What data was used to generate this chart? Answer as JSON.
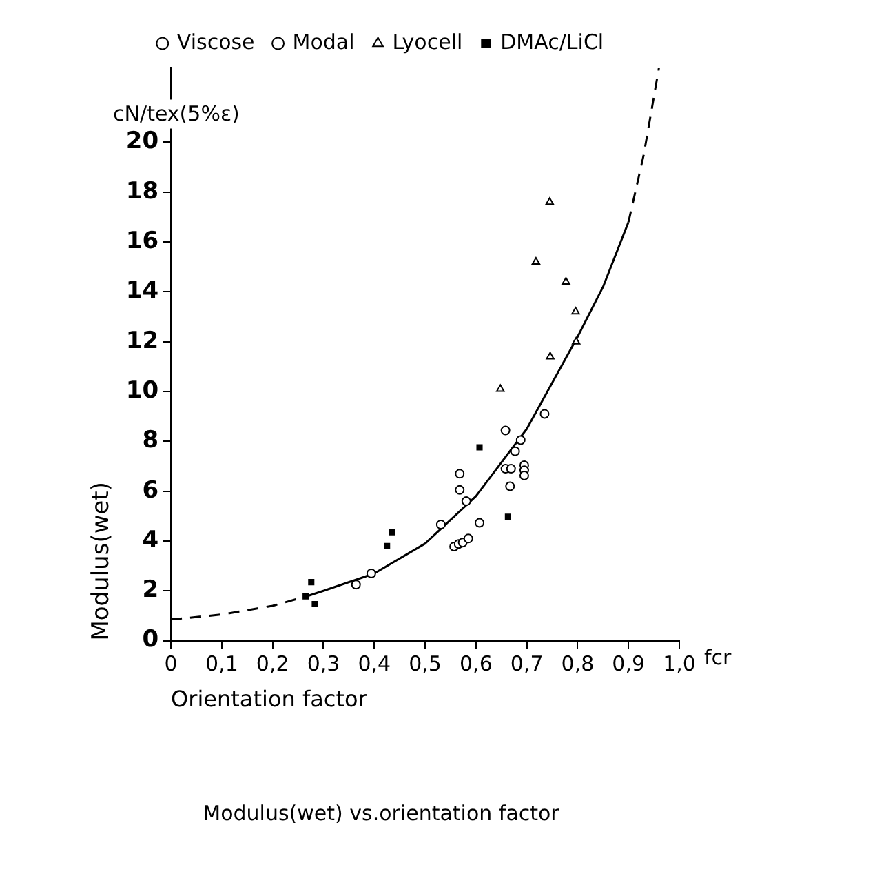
{
  "chart_data": {
    "type": "scatter",
    "title": "Modulus(wet) vs.orientation factor",
    "xlabel": "Orientation factor",
    "ylabel": "Modulus(wet)",
    "annotations": [
      "cN/tex(5%ε)",
      "fcr"
    ],
    "xlim": [
      0,
      1
    ],
    "xticks": [
      0,
      {
        "value": 0.1,
        "label": "0,1"
      },
      {
        "value": 0.2,
        "label": "0,2"
      },
      {
        "value": 0.3,
        "label": "0,3"
      },
      {
        "value": 0.4,
        "label": "0,4"
      },
      {
        "value": 0.5,
        "label": "0,5"
      },
      {
        "value": 0.6,
        "label": "0,6"
      },
      {
        "value": 0.7,
        "label": "0,7"
      },
      {
        "value": 0.8,
        "label": "0,8"
      },
      {
        "value": 0.9,
        "label": "0,9"
      },
      {
        "value": 1,
        "label": "1,0"
      }
    ],
    "ylim": [
      0,
      23
    ],
    "yticks": [
      0,
      2,
      4,
      6,
      8,
      10,
      12,
      14,
      16,
      18,
      20
    ],
    "grid": false,
    "legend": "top",
    "series": [
      {
        "name": "Viscose",
        "type": "scatter",
        "marker": "circle",
        "color": "#000000",
        "x": [
          0.364,
          0.394,
          0.531,
          0.581
        ],
        "values": [
          2.25,
          2.7,
          4.66,
          5.6
        ]
      },
      {
        "name": "Modal",
        "type": "scatter",
        "marker": "circle",
        "color": "#000000",
        "x": [
          0.568,
          0.568,
          0.557,
          0.566,
          0.574,
          0.585,
          0.607,
          0.658,
          0.688,
          0.677,
          0.658,
          0.669,
          0.667,
          0.695,
          0.695,
          0.695,
          0.735
        ],
        "values": [
          6.7,
          6.05,
          3.78,
          3.88,
          3.94,
          4.1,
          4.73,
          8.44,
          8.05,
          7.6,
          6.9,
          6.9,
          6.2,
          7.04,
          6.84,
          6.63,
          9.1
        ]
      },
      {
        "name": "Lyocell",
        "type": "scatter",
        "marker": "triangle",
        "color": "#000000",
        "x": [
          0.745,
          0.718,
          0.777,
          0.796,
          0.797,
          0.746,
          0.648
        ],
        "values": [
          17.6,
          15.2,
          14.4,
          13.2,
          12.0,
          11.4,
          10.1
        ]
      },
      {
        "name": "DMAc/LiCl",
        "type": "scatter",
        "marker": "square",
        "color": "#000000",
        "x": [
          0.276,
          0.265,
          0.283,
          0.425,
          0.435,
          0.607,
          0.663
        ],
        "values": [
          2.35,
          1.78,
          1.47,
          3.8,
          4.35,
          7.76,
          4.97
        ]
      },
      {
        "type": "line",
        "line_style": "dashed",
        "color": "#000000",
        "x": [
          0,
          0.1,
          0.2,
          0.27
        ],
        "values": [
          0.85,
          1.05,
          1.4,
          1.8
        ]
      },
      {
        "type": "line",
        "line_style": "solid",
        "color": "#000000",
        "x": [
          0.27,
          0.3,
          0.4,
          0.5,
          0.6,
          0.7,
          0.8,
          0.85,
          0.9
        ],
        "values": [
          1.8,
          2.0,
          2.7,
          3.9,
          5.8,
          8.5,
          12.2,
          14.2,
          16.8
        ]
      },
      {
        "type": "line",
        "line_style": "dashed",
        "color": "#000000",
        "x": [
          0.9,
          0.93,
          0.96
        ],
        "values": [
          16.8,
          19.5,
          23
        ]
      }
    ]
  }
}
